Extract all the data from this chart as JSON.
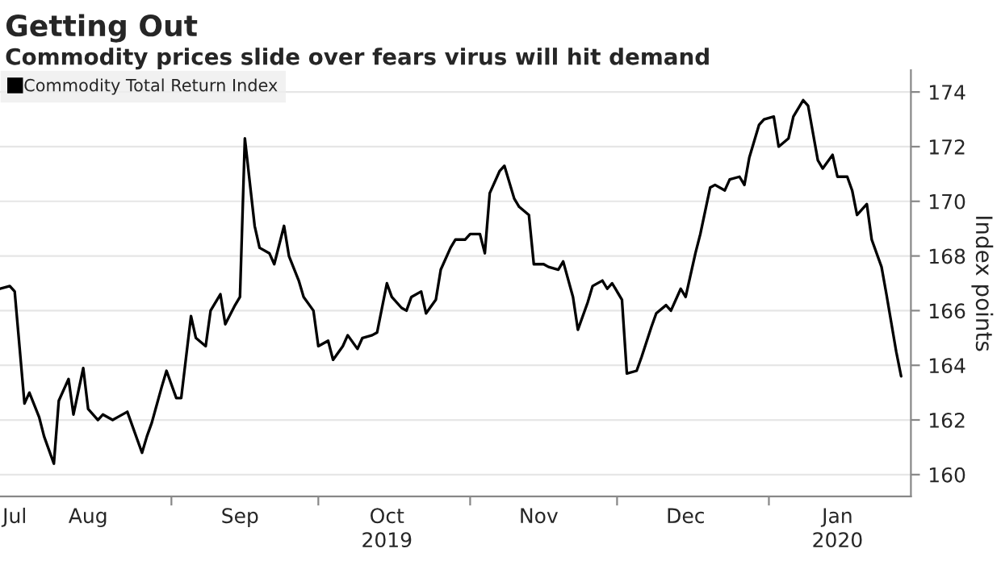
{
  "chart_data": {
    "type": "line",
    "title": "Getting Out",
    "subtitle": "Commodity prices slide over fears virus will hit demand",
    "ylabel": "Index points",
    "x": [
      "2019-07-28",
      "2019-07-30",
      "2019-07-31",
      "2019-08-02",
      "2019-08-03",
      "2019-08-05",
      "2019-08-06",
      "2019-08-08",
      "2019-08-09",
      "2019-08-11",
      "2019-08-12",
      "2019-08-14",
      "2019-08-15",
      "2019-08-17",
      "2019-08-18",
      "2019-08-20",
      "2019-08-21",
      "2019-08-23",
      "2019-08-26",
      "2019-08-27",
      "2019-08-28",
      "2019-08-30",
      "2019-08-31",
      "2019-09-02",
      "2019-09-03",
      "2019-09-05",
      "2019-09-06",
      "2019-09-08",
      "2019-09-09",
      "2019-09-11",
      "2019-09-12",
      "2019-09-14",
      "2019-09-15",
      "2019-09-16",
      "2019-09-18",
      "2019-09-19",
      "2019-09-21",
      "2019-09-22",
      "2019-09-24",
      "2019-09-25",
      "2019-09-27",
      "2019-09-28",
      "2019-09-30",
      "2019-10-01",
      "2019-10-03",
      "2019-10-04",
      "2019-10-06",
      "2019-10-07",
      "2019-10-09",
      "2019-10-10",
      "2019-10-12",
      "2019-10-13",
      "2019-10-15",
      "2019-10-16",
      "2019-10-18",
      "2019-10-19",
      "2019-10-20",
      "2019-10-22",
      "2019-10-23",
      "2019-10-25",
      "2019-10-26",
      "2019-10-28",
      "2019-10-29",
      "2019-10-31",
      "2019-11-01",
      "2019-11-03",
      "2019-11-04",
      "2019-11-05",
      "2019-11-07",
      "2019-11-08",
      "2019-11-10",
      "2019-11-11",
      "2019-11-13",
      "2019-11-14",
      "2019-11-16",
      "2019-11-17",
      "2019-11-19",
      "2019-11-20",
      "2019-11-22",
      "2019-11-23",
      "2019-11-25",
      "2019-11-26",
      "2019-11-28",
      "2019-11-29",
      "2019-11-30",
      "2019-12-02",
      "2019-12-03",
      "2019-12-05",
      "2019-12-06",
      "2019-12-08",
      "2019-12-09",
      "2019-12-11",
      "2019-12-12",
      "2019-12-14",
      "2019-12-15",
      "2019-12-17",
      "2019-12-18",
      "2019-12-20",
      "2019-12-21",
      "2019-12-23",
      "2019-12-24",
      "2019-12-26",
      "2019-12-27",
      "2019-12-28",
      "2019-12-30",
      "2019-12-31",
      "2020-01-02",
      "2020-01-03",
      "2020-01-05",
      "2020-01-06",
      "2020-01-08",
      "2020-01-09",
      "2020-01-11",
      "2020-01-12",
      "2020-01-14",
      "2020-01-15",
      "2020-01-17",
      "2020-01-18",
      "2020-01-19",
      "2020-01-21",
      "2020-01-22",
      "2020-01-24",
      "2020-01-25",
      "2020-01-27",
      "2020-01-28"
    ],
    "series": [
      {
        "name": "Commodity Total Return Index",
        "color": "#000000",
        "values": [
          166.8,
          166.9,
          166.7,
          162.6,
          163.0,
          162.1,
          161.4,
          160.4,
          162.7,
          163.5,
          162.2,
          163.9,
          162.4,
          162.0,
          162.2,
          162.0,
          162.1,
          162.3,
          160.8,
          161.4,
          161.9,
          163.2,
          163.8,
          162.8,
          162.8,
          165.8,
          165.0,
          164.7,
          166.0,
          166.6,
          165.5,
          166.2,
          166.5,
          172.3,
          169.1,
          168.3,
          168.1,
          167.7,
          169.1,
          168.0,
          167.1,
          166.5,
          166.0,
          164.7,
          164.9,
          164.2,
          164.7,
          165.1,
          164.6,
          165.0,
          165.1,
          165.2,
          167.0,
          166.5,
          166.1,
          166.0,
          166.5,
          166.7,
          165.9,
          166.4,
          167.5,
          168.3,
          168.6,
          168.6,
          168.8,
          168.8,
          168.1,
          170.3,
          171.1,
          171.3,
          170.1,
          169.8,
          169.5,
          167.7,
          167.7,
          167.6,
          167.5,
          167.8,
          166.5,
          165.3,
          166.3,
          166.9,
          167.1,
          166.8,
          167.0,
          166.4,
          163.7,
          163.8,
          164.3,
          165.4,
          165.9,
          166.2,
          166.0,
          166.8,
          166.5,
          168.1,
          168.8,
          170.5,
          170.6,
          170.4,
          170.8,
          170.9,
          170.6,
          171.6,
          172.8,
          173.0,
          173.1,
          172.0,
          172.3,
          173.1,
          173.7,
          173.5,
          171.5,
          171.2,
          171.7,
          170.9,
          170.9,
          170.4,
          169.5,
          169.9,
          168.6,
          167.6,
          166.6,
          164.5,
          163.6
        ]
      }
    ],
    "xlim": [
      "2019-07-28",
      "2020-01-30"
    ],
    "xticks": [
      {
        "value": "2019-07-31",
        "label": "Jul"
      },
      {
        "value": "2019-08-15",
        "label": "Aug"
      },
      {
        "value": "2019-09-01",
        "label": null
      },
      {
        "value": "2019-09-15",
        "label": "Sep"
      },
      {
        "value": "2019-10-01",
        "label": null
      },
      {
        "value": "2019-10-15",
        "label": "Oct\n2019"
      },
      {
        "value": "2019-11-01",
        "label": null
      },
      {
        "value": "2019-11-15",
        "label": "Nov"
      },
      {
        "value": "2019-12-01",
        "label": null
      },
      {
        "value": "2019-12-15",
        "label": "Dec"
      },
      {
        "value": "2020-01-01",
        "label": null
      },
      {
        "value": "2020-01-15",
        "label": "Jan\n2020"
      }
    ],
    "ylim": [
      159.2,
      174.8
    ],
    "yticks": [
      160,
      162,
      164,
      166,
      168,
      170,
      172,
      174
    ],
    "grid": "y",
    "legend": "top left",
    "line_style": "solid",
    "marker": "none"
  }
}
